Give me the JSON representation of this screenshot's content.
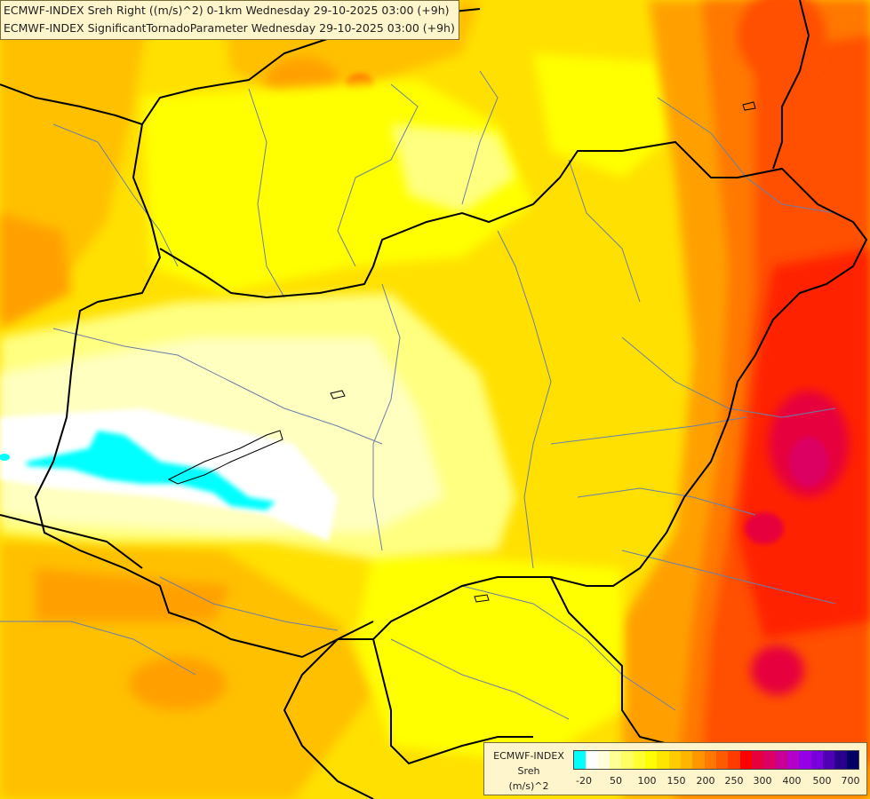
{
  "title": {
    "line1": "ECMWF-INDEX Sreh Right ((m/s)^2) 0-1km Wednesday 29-10-2025 03:00 (+9h)",
    "line2": "ECMWF-INDEX SignificantTornadoParameter Wednesday 29-10-2025 03:00 (+9h)"
  },
  "legend": {
    "label_line1": "ECMWF-INDEX",
    "label_line2": "Sreh",
    "label_line3": "(m/s)^2",
    "colors": [
      "#00ffff",
      "#ffffff",
      "#ffffdc",
      "#ffff96",
      "#ffff64",
      "#ffff32",
      "#ffff00",
      "#ffe600",
      "#ffcc00",
      "#ffb400",
      "#ff9600",
      "#ff7800",
      "#ff5a00",
      "#ff3c00",
      "#ff0000",
      "#e6003c",
      "#dc0064",
      "#c80096",
      "#b400c8",
      "#9600e6",
      "#7800dc",
      "#5000b4",
      "#28008c",
      "#000064"
    ],
    "ticks": [
      "-20",
      "50",
      "100",
      "150",
      "200",
      "250",
      "300",
      "400",
      "500",
      "700"
    ]
  },
  "map": {
    "field_colors": {
      "cyan": "#00ffff",
      "white": "#ffffff",
      "pale": "#ffffc0",
      "light_yellow": "#ffff80",
      "yellow": "#ffff00",
      "gold": "#ffe000",
      "amber": "#ffc000",
      "orange": "#ffa000",
      "dark_orange": "#ff7800",
      "red_orange": "#ff5000",
      "red": "#ff2000",
      "crimson": "#e6003c",
      "magenta": "#dc0064"
    },
    "border_color": "#000000",
    "river_color": "#6a7fa8"
  }
}
